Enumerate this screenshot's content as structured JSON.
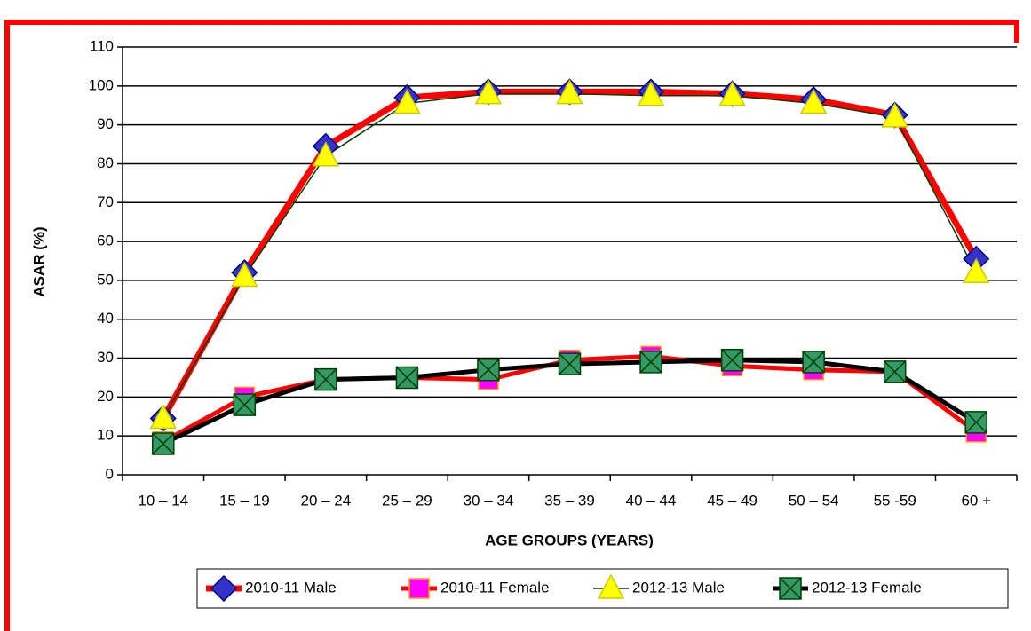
{
  "chart_data": {
    "type": "line",
    "ylabel": "ASAR (%)",
    "xlabel": "AGE GROUPS (YEARS)",
    "categories": [
      "10 – 14",
      "15 – 19",
      "20 – 24",
      "25 – 29",
      "30 – 34",
      "35 – 39",
      "40 – 44",
      "45 – 49",
      "50 – 54",
      "55  -59",
      "60 +"
    ],
    "series": [
      {
        "name": "2010-11 Male",
        "color": "#ff0000",
        "marker": "diamond",
        "marker_color": "#3333cc",
        "values": [
          14.5,
          52,
          84.5,
          97,
          98.5,
          98.5,
          98.5,
          98,
          96.5,
          92.5,
          55.5
        ]
      },
      {
        "name": "2010-11 Female",
        "color": "#ff0000",
        "marker": "square",
        "marker_color": "#ff00ff",
        "values": [
          8.5,
          20,
          24.5,
          25,
          24.5,
          29.5,
          30.5,
          28,
          27,
          26.5,
          11
        ]
      },
      {
        "name": "2012-13 Male",
        "color": "#004000",
        "marker": "triangle",
        "marker_color": "#ffff00",
        "values": [
          14.5,
          51,
          82,
          95.5,
          98,
          98,
          97.5,
          97.5,
          95.5,
          92,
          52
        ]
      },
      {
        "name": "2012-13 Female",
        "color": "#000000",
        "marker": "xsquare",
        "marker_color": "#339966",
        "values": [
          8,
          18,
          24.5,
          25,
          27,
          28.5,
          29,
          29.5,
          29,
          26.5,
          13.5
        ]
      }
    ],
    "ylim": [
      0,
      110
    ],
    "yticks": [
      0,
      10,
      20,
      30,
      40,
      50,
      60,
      70,
      80,
      90,
      100,
      110
    ],
    "grid": true,
    "legend": "bottom"
  }
}
